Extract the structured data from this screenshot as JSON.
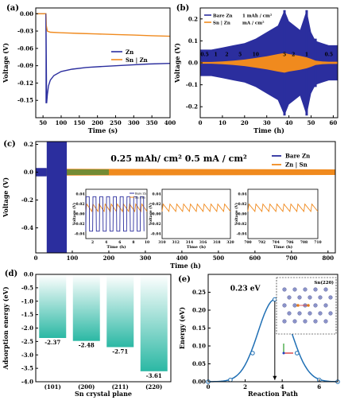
{
  "chart_data": [
    {
      "panel": "(a)",
      "type": "line",
      "xlabel": "Time (s)",
      "ylabel": "Voltage (V)",
      "xlim": [
        30,
        400
      ],
      "ylim": [
        -0.18,
        0.01
      ],
      "xticks": [
        50,
        100,
        150,
        200,
        250,
        300,
        350,
        400
      ],
      "yticks": [
        0.0,
        -0.03,
        -0.06,
        -0.09,
        -0.12,
        -0.15
      ],
      "legend_position": "right",
      "series": [
        {
          "name": "Zn",
          "color": "#2b2e9e",
          "x": [
            30,
            58,
            60,
            62,
            65,
            70,
            80,
            100,
            130,
            170,
            220,
            280,
            340,
            400
          ],
          "y": [
            0.0,
            0.0,
            -0.155,
            -0.14,
            -0.125,
            -0.115,
            -0.107,
            -0.1,
            -0.096,
            -0.093,
            -0.091,
            -0.089,
            -0.087,
            -0.086
          ]
        },
        {
          "name": "Sn | Zn",
          "color": "#f08a1e",
          "x": [
            30,
            58,
            59,
            62,
            70,
            100,
            150,
            200,
            250,
            300,
            350,
            400
          ],
          "y": [
            0.0,
            0.0,
            -0.02,
            -0.03,
            -0.032,
            -0.033,
            -0.034,
            -0.035,
            -0.036,
            -0.037,
            -0.038,
            -0.039
          ]
        }
      ]
    },
    {
      "panel": "(b)",
      "type": "line",
      "xlabel": "Time (h)",
      "ylabel": "Voltage (V)",
      "xlim": [
        0,
        62
      ],
      "ylim": [
        -0.25,
        0.25
      ],
      "xticks": [
        0,
        10,
        20,
        30,
        40,
        50,
        60
      ],
      "yticks": [
        0.2,
        0.1,
        0.0,
        -0.1,
        -0.2
      ],
      "legend": [
        "Bare Zn",
        "Sn | Zn"
      ],
      "legend_units": [
        "1 mAh / cm²",
        "mA / cm²"
      ],
      "rate_labels": [
        "0.5",
        "1",
        "2",
        "5",
        "10",
        "5",
        "2",
        "1",
        "0.5"
      ],
      "bare_envelope_hours": [
        0,
        5,
        10,
        15,
        20,
        25,
        30,
        35,
        38,
        40,
        45,
        48,
        50,
        52,
        55,
        58,
        62
      ],
      "bare_envelope_halfwidth_V": [
        0.06,
        0.06,
        0.07,
        0.08,
        0.09,
        0.11,
        0.14,
        0.17,
        0.24,
        0.19,
        0.15,
        0.24,
        0.14,
        0.1,
        0.09,
        0.08,
        0.08
      ],
      "sn_envelope_halfwidth_V": [
        0.004,
        0.004,
        0.006,
        0.01,
        0.015,
        0.022,
        0.03,
        0.04,
        0.045,
        0.04,
        0.032,
        0.025,
        0.018,
        0.01,
        0.006,
        0.005,
        0.005
      ]
    },
    {
      "panel": "(c)",
      "type": "line",
      "title": "0.25 mAh/ cm²  0.5 mA / cm²",
      "xlabel": "Time (h)",
      "ylabel": "Voltage (V)",
      "xlim": [
        0,
        820
      ],
      "ylim": [
        -0.58,
        0.22
      ],
      "xticks": [
        0,
        100,
        200,
        300,
        400,
        500,
        600,
        700,
        800
      ],
      "yticks": [
        0.2,
        0.0,
        -0.2,
        -0.4
      ],
      "legend": [
        "Bare Zn",
        "Zn | Sn"
      ],
      "bare_failure_hours": [
        30,
        85
      ],
      "insets": [
        {
          "xlim": [
            1,
            10
          ],
          "xticks": [
            2,
            4,
            6,
            8,
            10
          ],
          "yticks": [
            0.04,
            0.02,
            0.0,
            -0.02,
            -0.04
          ],
          "xlabel": "Time (h)",
          "ylabel": "Voltage (V)",
          "legend": [
            "Bare Zn",
            "Zn | Sn"
          ]
        },
        {
          "xlim": [
            310,
            320
          ],
          "xticks": [
            310,
            312,
            314,
            316,
            318,
            320
          ],
          "yticks": [
            0.04,
            0.02,
            0.0,
            -0.02,
            -0.04
          ],
          "xlabel": "Time (h)",
          "ylabel": "Voltage (V)"
        },
        {
          "xlim": [
            700,
            710
          ],
          "xticks": [
            700,
            702,
            704,
            706,
            708,
            710
          ],
          "yticks": [
            0.04,
            0.02,
            0.0,
            -0.02,
            -0.04
          ],
          "xlabel": "Time (h)",
          "ylabel": "Voltage (V)"
        }
      ]
    },
    {
      "panel": "(d)",
      "type": "bar",
      "xlabel": "Sn crystal plane",
      "ylabel": "Adsorption energy (eV)",
      "categories": [
        "(101)",
        "(200)",
        "(211)",
        "(220)"
      ],
      "values": [
        -2.37,
        -2.48,
        -2.71,
        -3.61
      ],
      "value_labels": [
        "-2.37",
        "-2.48",
        "-2.71",
        "-3.61"
      ],
      "ylim": [
        -4.0,
        0.0
      ],
      "yticks": [
        "0.0",
        "-0.5",
        "-1.0",
        "-1.5",
        "-2.0",
        "-2.5",
        "-3.0",
        "-3.5",
        "-4.0"
      ]
    },
    {
      "panel": "(e)",
      "type": "line",
      "xlabel": "Reaction Path",
      "ylabel": "Energy (eV)",
      "annotation": "0.23 eV",
      "inset_label": "Sn(220)",
      "xlim": [
        0,
        7
      ],
      "ylim": [
        0,
        0.3
      ],
      "xticks": [
        0,
        2,
        4,
        6
      ],
      "yticks": [
        "0.00",
        "0.05",
        "0.10",
        "0.15",
        "0.20",
        "0.25"
      ],
      "points_x": [
        0,
        1.2,
        2.4,
        3.6,
        4.8,
        6.0,
        7.0
      ],
      "points_y": [
        0.0,
        0.005,
        0.08,
        0.23,
        0.08,
        0.005,
        0.0
      ]
    }
  ]
}
